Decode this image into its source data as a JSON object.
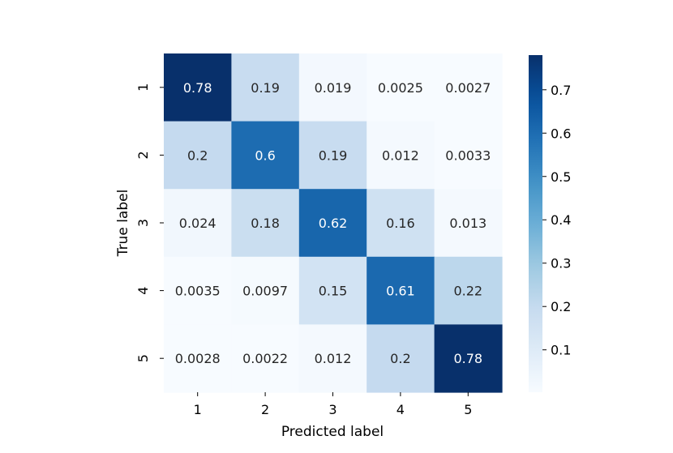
{
  "chart_data": {
    "type": "heatmap",
    "title": "",
    "xlabel": "Predicted label",
    "ylabel": "True label",
    "x_categories": [
      "1",
      "2",
      "3",
      "4",
      "5"
    ],
    "y_categories": [
      "1",
      "2",
      "3",
      "4",
      "5"
    ],
    "values": [
      [
        0.78,
        0.19,
        0.019,
        0.0025,
        0.0027
      ],
      [
        0.2,
        0.6,
        0.19,
        0.012,
        0.0033
      ],
      [
        0.024,
        0.18,
        0.62,
        0.16,
        0.013
      ],
      [
        0.0035,
        0.0097,
        0.15,
        0.61,
        0.22
      ],
      [
        0.0028,
        0.0022,
        0.012,
        0.2,
        0.78
      ]
    ],
    "value_labels": [
      [
        "0.78",
        "0.19",
        "0.019",
        "0.0025",
        "0.0027"
      ],
      [
        "0.2",
        "0.6",
        "0.19",
        "0.012",
        "0.0033"
      ],
      [
        "0.024",
        "0.18",
        "0.62",
        "0.16",
        "0.013"
      ],
      [
        "0.0035",
        "0.0097",
        "0.15",
        "0.61",
        "0.22"
      ],
      [
        "0.0028",
        "0.0022",
        "0.012",
        "0.2",
        "0.78"
      ]
    ],
    "colormap": "Blues",
    "color_range": [
      0.0022,
      0.78
    ],
    "colorbar": {
      "ticks": [
        0.1,
        0.2,
        0.3,
        0.4,
        0.5,
        0.6,
        0.7
      ],
      "tick_labels": [
        "0.1",
        "0.2",
        "0.3",
        "0.4",
        "0.5",
        "0.6",
        "0.7"
      ]
    },
    "grid": false
  }
}
